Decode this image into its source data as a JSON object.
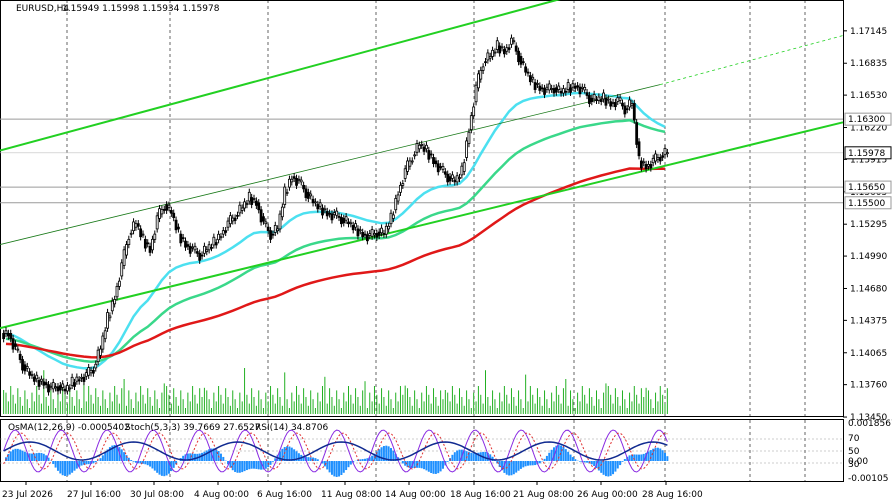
{
  "chart_data": {
    "type": "candlestick",
    "symbol_label": "EURUSD,H4",
    "ohlc_label": "1.15949 1.15998 1.15934 1.15978",
    "last_price": "1.15978",
    "y_range": [
      1.1346,
      1.1744
    ],
    "price_ticks": [
      "1.17145",
      "1.16835",
      "1.16530",
      "1.16220",
      "1.15915",
      "1.15605",
      "1.15295",
      "1.14990",
      "1.14680",
      "1.14375",
      "1.14065",
      "1.13760",
      "1.13450"
    ],
    "levels": [
      {
        "label": "1.16300",
        "price": 1.163,
        "color": "#a9a9a9"
      },
      {
        "label": "1.15650",
        "price": 1.1565,
        "color": "#a9a9a9"
      },
      {
        "label": "1.15500",
        "price": 1.155,
        "color": "#a9a9a9"
      }
    ],
    "time_labels": [
      "23 Jul 2026",
      "27 Jul 16:00",
      "30 Jul 08:00",
      "4 Aug 00:00",
      "6 Aug 16:00",
      "11 Aug 08:00",
      "14 Aug 00:00",
      "18 Aug 16:00",
      "21 Aug 08:00",
      "26 Aug 00:00",
      "28 Aug 16:00"
    ],
    "closes": [
      1.1425,
      1.141,
      1.1395,
      1.1385,
      1.138,
      1.1378,
      1.1372,
      1.1375,
      1.137,
      1.1378,
      1.1382,
      1.1385,
      1.1392,
      1.141,
      1.144,
      1.146,
      1.149,
      1.152,
      1.153,
      1.1515,
      1.1505,
      1.1535,
      1.1548,
      1.154,
      1.152,
      1.151,
      1.1505,
      1.15,
      1.1505,
      1.1512,
      1.152,
      1.153,
      1.1538,
      1.1545,
      1.1555,
      1.155,
      1.153,
      1.152,
      1.1525,
      1.156,
      1.1575,
      1.157,
      1.156,
      1.155,
      1.1545,
      1.154,
      1.1538,
      1.1535,
      1.153,
      1.1525,
      1.152,
      1.1518,
      1.1522,
      1.152,
      1.1535,
      1.156,
      1.158,
      1.1595,
      1.1605,
      1.16,
      1.159,
      1.1582,
      1.1575,
      1.157,
      1.158,
      1.162,
      1.166,
      1.1685,
      1.169,
      1.17,
      1.1695,
      1.1705,
      1.169,
      1.1675,
      1.1665,
      1.166,
      1.1658,
      1.166,
      1.1655,
      1.166,
      1.1662,
      1.1658,
      1.165,
      1.1648,
      1.165,
      1.1645,
      1.1648,
      1.164,
      1.1645,
      1.159,
      1.1585,
      1.159,
      1.1595,
      1.1598
    ],
    "volume_scale": "tick volumes",
    "indicators": {
      "osma_label": "OsMA(12,26,9) -0.0005402",
      "stoch_label": "Stoch(5,3,3) 39.7669 27.6527",
      "rsi_label": "RSI(14) 34.8706",
      "sub_ticks": [
        "0.0018567",
        "70",
        "50",
        "30",
        "0.00",
        "-0.00105"
      ]
    },
    "ma_colors": {
      "ma_fast": "#4ce0f0",
      "ma_mid": "#3ad88a",
      "ma_slow": "#e01818",
      "channel": "#22d022"
    }
  }
}
